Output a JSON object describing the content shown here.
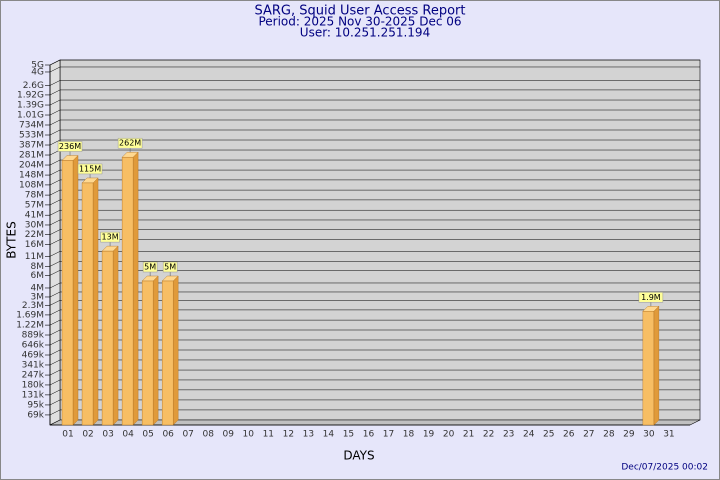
{
  "chart_data": {
    "type": "bar",
    "title": "SARG, Squid User Access Report",
    "subtitle_lines": [
      "Period: 2025 Nov 30-2025 Dec 06",
      "User: 10.251.251.194"
    ],
    "xlabel": "DAYS",
    "ylabel": "BYTES",
    "timestamp": "Dec/07/2025 00:02",
    "categories": [
      "01",
      "02",
      "03",
      "04",
      "05",
      "06",
      "07",
      "08",
      "09",
      "10",
      "11",
      "12",
      "13",
      "14",
      "15",
      "16",
      "17",
      "18",
      "19",
      "20",
      "21",
      "22",
      "23",
      "24",
      "25",
      "26",
      "27",
      "28",
      "29",
      "30",
      "31"
    ],
    "values": [
      236000000,
      115000000,
      13000000,
      262000000,
      5000000,
      5000000,
      null,
      null,
      null,
      null,
      null,
      null,
      null,
      null,
      null,
      null,
      null,
      null,
      null,
      null,
      null,
      null,
      null,
      null,
      null,
      null,
      null,
      null,
      null,
      1900000,
      null
    ],
    "value_labels": [
      "236M",
      "115M",
      "13M",
      "262M",
      "5M",
      "5M",
      null,
      null,
      null,
      null,
      null,
      null,
      null,
      null,
      null,
      null,
      null,
      null,
      null,
      null,
      null,
      null,
      null,
      null,
      null,
      null,
      null,
      null,
      null,
      "1.9M",
      null
    ],
    "color": "#f7be64",
    "log": true,
    "grid": true,
    "ylim": [
      50000,
      5000000000
    ],
    "yticks": [
      {
        "value": 5000000000,
        "label": "5G"
      },
      {
        "value": 4000000000,
        "label": "4G"
      },
      {
        "value": 2600000000,
        "label": "2.6G"
      },
      {
        "value": 1920000000,
        "label": "1.92G"
      },
      {
        "value": 1390000000,
        "label": "1.39G"
      },
      {
        "value": 1010000000,
        "label": "1.01G"
      },
      {
        "value": 734000000,
        "label": "734M"
      },
      {
        "value": 533000000,
        "label": "533M"
      },
      {
        "value": 387000000,
        "label": "387M"
      },
      {
        "value": 281000000,
        "label": "281M"
      },
      {
        "value": 204000000,
        "label": "204M"
      },
      {
        "value": 148000000,
        "label": "148M"
      },
      {
        "value": 108000000,
        "label": "108M"
      },
      {
        "value": 78000000,
        "label": "78M"
      },
      {
        "value": 57000000,
        "label": "57M"
      },
      {
        "value": 41000000,
        "label": "41M"
      },
      {
        "value": 30000000,
        "label": "30M"
      },
      {
        "value": 22000000,
        "label": "22M"
      },
      {
        "value": 16000000,
        "label": "16M"
      },
      {
        "value": 11000000,
        "label": "11M"
      },
      {
        "value": 8000000,
        "label": "8M"
      },
      {
        "value": 6000000,
        "label": "6M"
      },
      {
        "value": 4000000,
        "label": "4M"
      },
      {
        "value": 3000000,
        "label": "3M"
      },
      {
        "value": 2300000,
        "label": "2.3M"
      },
      {
        "value": 1690000,
        "label": "1.69M"
      },
      {
        "value": 1220000,
        "label": "1.22M"
      },
      {
        "value": 889000,
        "label": "889k"
      },
      {
        "value": 646000,
        "label": "646k"
      },
      {
        "value": 469000,
        "label": "469k"
      },
      {
        "value": 341000,
        "label": "341k"
      },
      {
        "value": 247000,
        "label": "247k"
      },
      {
        "value": 180000,
        "label": "180k"
      },
      {
        "value": 131000,
        "label": "131k"
      },
      {
        "value": 95000,
        "label": "95k"
      },
      {
        "value": 69000,
        "label": "69k"
      }
    ]
  }
}
